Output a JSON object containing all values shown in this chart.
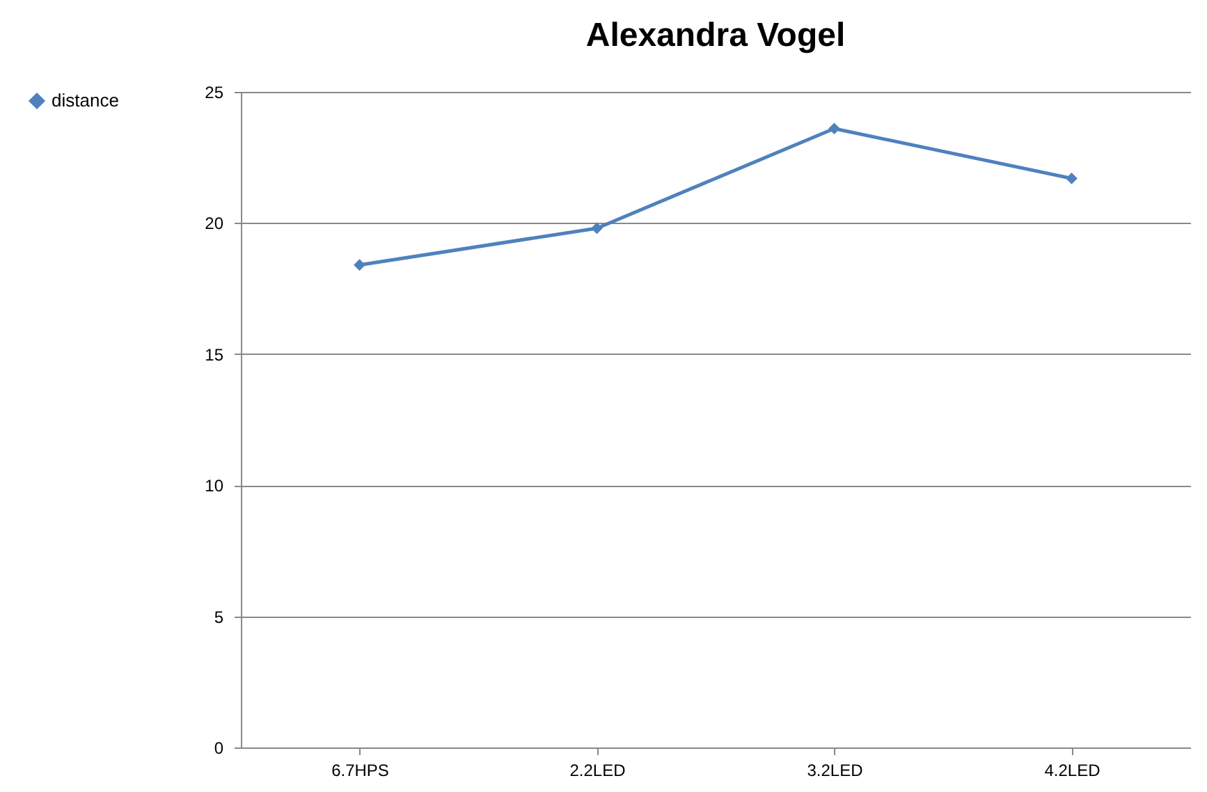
{
  "chart_data": {
    "type": "line",
    "title": "Alexandra Vogel",
    "categories": [
      "6.7HPS",
      "2.2LED",
      "3.2LED",
      "4.2LED"
    ],
    "series": [
      {
        "name": "distance",
        "color": "#4f81bd",
        "values": [
          18.4,
          19.8,
          23.6,
          21.7
        ]
      }
    ],
    "ylim": [
      0,
      25
    ],
    "yticks": [
      0,
      5,
      10,
      15,
      20,
      25
    ],
    "grid": "y",
    "legend": "left",
    "marker": "diamond",
    "line_style": "solid"
  }
}
